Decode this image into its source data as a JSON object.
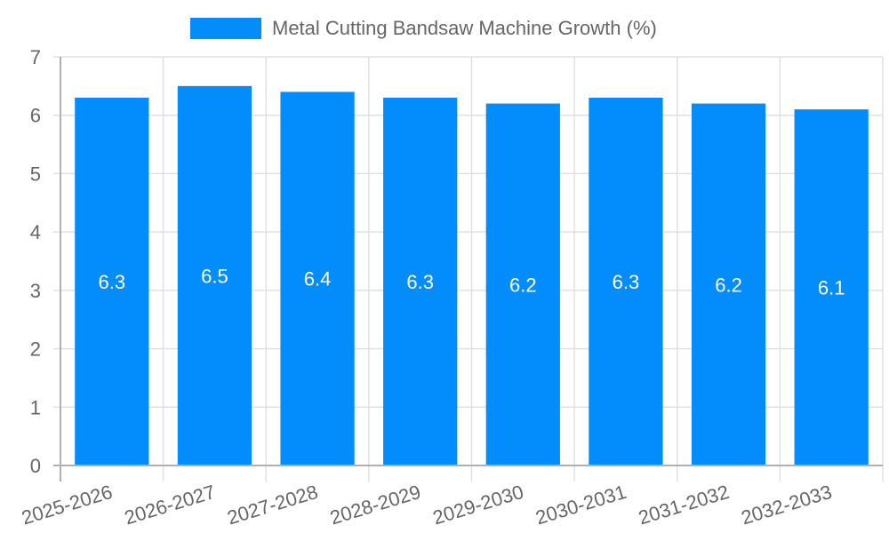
{
  "legend": {
    "label": "Metal Cutting Bandsaw Machine Growth (%)",
    "color": "#038cfc"
  },
  "colors": {
    "bar": "#038cfc",
    "grid": "#e0e0e0",
    "axis": "#b0b0b0",
    "tick_text": "#666666",
    "bar_label": "#ffffff"
  },
  "chart_data": {
    "type": "bar",
    "title": "",
    "xlabel": "",
    "ylabel": "",
    "categories": [
      "2025-2026",
      "2026-2027",
      "2027-2028",
      "2028-2029",
      "2029-2030",
      "2030-2031",
      "2031-2032",
      "2032-2033"
    ],
    "series": [
      {
        "name": "Metal Cutting Bandsaw Machine Growth (%)",
        "values": [
          6.3,
          6.5,
          6.4,
          6.3,
          6.2,
          6.3,
          6.2,
          6.1
        ]
      }
    ],
    "ylim": [
      0,
      7
    ],
    "yticks": [
      0,
      1,
      2,
      3,
      4,
      5,
      6,
      7
    ],
    "grid": true,
    "legend_position": "top",
    "data_labels": true
  }
}
